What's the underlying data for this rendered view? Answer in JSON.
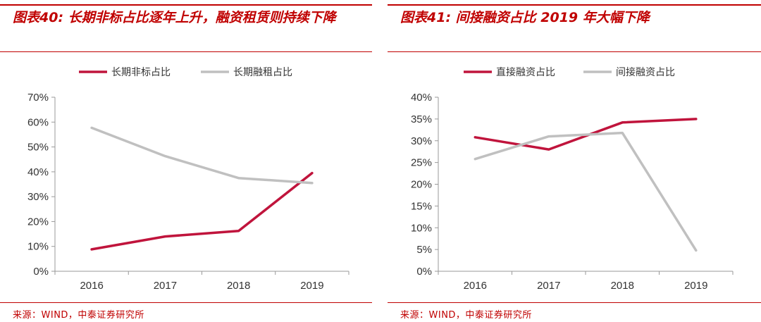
{
  "left_panel": {
    "title": "图表40: 长期非标占比逐年上升，融资租赁则持续下降",
    "source": "来源：WIND，中泰证券研究所"
  },
  "right_panel": {
    "title": "图表41: 间接融资占比 2019 年大幅下降",
    "source": "来源：WIND，中泰证券研究所"
  },
  "chart_data": [
    {
      "type": "line",
      "categories": [
        "2016",
        "2017",
        "2018",
        "2019"
      ],
      "series": [
        {
          "name": "长期非标占比",
          "values": [
            8.8,
            14.0,
            16.2,
            39.5
          ],
          "color": "#c0143c"
        },
        {
          "name": "长期融租占比",
          "values": [
            57.7,
            46.3,
            37.5,
            35.5
          ],
          "color": "#c0c0c0"
        }
      ],
      "ylim": [
        0,
        70
      ],
      "yticks": [
        0,
        10,
        20,
        30,
        40,
        50,
        60,
        70
      ],
      "ytick_suffix": "%",
      "legend": "top-center",
      "grid": false
    },
    {
      "type": "line",
      "categories": [
        "2016",
        "2017",
        "2018",
        "2019"
      ],
      "series": [
        {
          "name": "直接融资占比",
          "values": [
            30.8,
            28.0,
            34.2,
            35.0
          ],
          "color": "#c0143c"
        },
        {
          "name": "间接融资占比",
          "values": [
            25.8,
            31.0,
            31.8,
            4.8
          ],
          "color": "#c0c0c0"
        }
      ],
      "ylim": [
        0,
        40
      ],
      "yticks": [
        0,
        5,
        10,
        15,
        20,
        25,
        30,
        35,
        40
      ],
      "ytick_suffix": "%",
      "legend": "top-center",
      "grid": false
    }
  ]
}
